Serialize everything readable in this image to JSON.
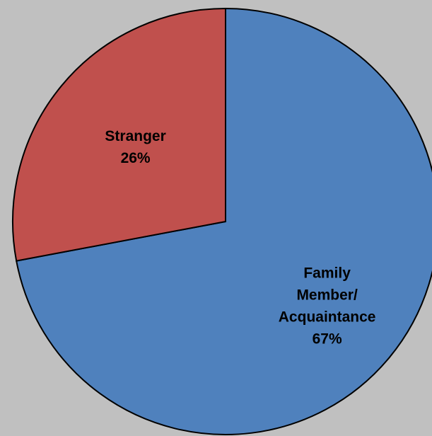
{
  "chart_data": {
    "type": "pie",
    "slices": [
      {
        "label_lines": [
          "Family",
          "Member/",
          "Acquaintance"
        ],
        "value": 67,
        "value_label": "67%",
        "color": "#4f81bd"
      },
      {
        "label_lines": [
          "Stranger"
        ],
        "value": 26,
        "value_label": "26%",
        "color": "#c0504d"
      }
    ],
    "background": "#c0c0c0",
    "outline_color": "#000000",
    "legend": "none",
    "labels": "inside-slices"
  }
}
